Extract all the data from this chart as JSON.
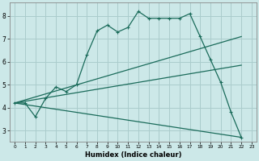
{
  "xlabel": "Humidex (Indice chaleur)",
  "bg_color": "#cce8e8",
  "grid_color": "#aacccc",
  "line_color": "#1a6b5a",
  "xlim": [
    -0.5,
    23.5
  ],
  "ylim": [
    2.5,
    8.6
  ],
  "xticks": [
    0,
    1,
    2,
    3,
    4,
    5,
    6,
    7,
    8,
    9,
    10,
    11,
    12,
    13,
    14,
    15,
    16,
    17,
    18,
    19,
    20,
    21,
    22,
    23
  ],
  "yticks": [
    3,
    4,
    5,
    6,
    7,
    8
  ],
  "series1_x": [
    0,
    1,
    2,
    3,
    4,
    5,
    6,
    7,
    8,
    9,
    10,
    11,
    12,
    13,
    14,
    15,
    16,
    17,
    18,
    19,
    20,
    21,
    22
  ],
  "series1_y": [
    4.2,
    4.2,
    3.6,
    4.4,
    4.9,
    4.7,
    5.0,
    6.3,
    7.35,
    7.6,
    7.3,
    7.5,
    8.2,
    7.9,
    7.9,
    7.9,
    7.9,
    8.1,
    7.1,
    6.1,
    5.1,
    3.8,
    2.7
  ],
  "series2_x": [
    0,
    22
  ],
  "series2_y": [
    4.2,
    7.1
  ],
  "series3_x": [
    0,
    22
  ],
  "series3_y": [
    4.2,
    5.85
  ],
  "series4_x": [
    0,
    22
  ],
  "series4_y": [
    4.2,
    2.7
  ]
}
